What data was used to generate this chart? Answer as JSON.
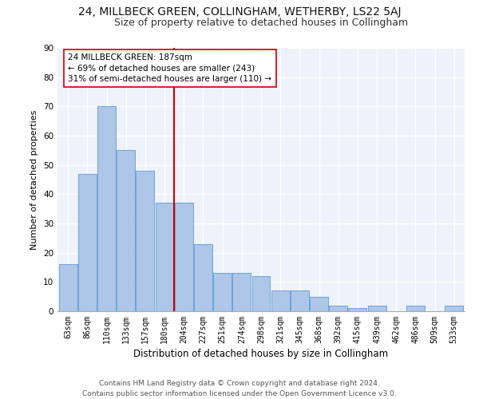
{
  "title": "24, MILLBECK GREEN, COLLINGHAM, WETHERBY, LS22 5AJ",
  "subtitle": "Size of property relative to detached houses in Collingham",
  "xlabel": "Distribution of detached houses by size in Collingham",
  "ylabel": "Number of detached properties",
  "categories": [
    "63sqm",
    "86sqm",
    "110sqm",
    "133sqm",
    "157sqm",
    "180sqm",
    "204sqm",
    "227sqm",
    "251sqm",
    "274sqm",
    "298sqm",
    "321sqm",
    "345sqm",
    "368sqm",
    "392sqm",
    "415sqm",
    "439sqm",
    "462sqm",
    "486sqm",
    "509sqm",
    "533sqm"
  ],
  "values": [
    16,
    47,
    70,
    55,
    48,
    37,
    37,
    23,
    13,
    13,
    12,
    7,
    7,
    5,
    2,
    1,
    2,
    0,
    2,
    0,
    2
  ],
  "bar_color": "#aec6e8",
  "bar_edge_color": "#5b9bd5",
  "vline_x": 5.5,
  "vline_color": "#cc0000",
  "annotation_line1": "24 MILLBECK GREEN: 187sqm",
  "annotation_line2": "← 69% of detached houses are smaller (243)",
  "annotation_line3": "31% of semi-detached houses are larger (110) →",
  "annotation_box_color": "#ffffff",
  "annotation_box_edge_color": "#cc0000",
  "ylim": [
    0,
    90
  ],
  "yticks": [
    0,
    10,
    20,
    30,
    40,
    50,
    60,
    70,
    80,
    90
  ],
  "footer1": "Contains HM Land Registry data © Crown copyright and database right 2024.",
  "footer2": "Contains public sector information licensed under the Open Government Licence v3.0.",
  "background_color": "#eef2fa",
  "fig_background_color": "#ffffff",
  "grid_color": "#ffffff",
  "title_fontsize": 10,
  "subtitle_fontsize": 9,
  "tick_fontsize": 7,
  "ylabel_fontsize": 8,
  "xlabel_fontsize": 8.5,
  "footer_fontsize": 6.5,
  "annotation_fontsize": 7.5
}
